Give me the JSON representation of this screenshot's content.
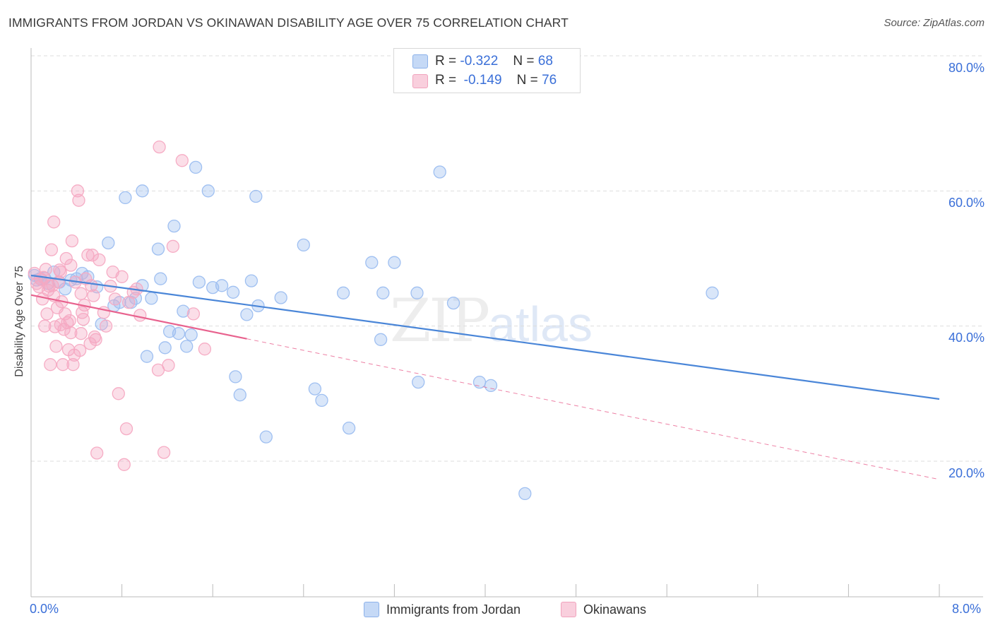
{
  "title": "IMMIGRANTS FROM JORDAN VS OKINAWAN DISABILITY AGE OVER 75 CORRELATION CHART",
  "source": "Source: ZipAtlas.com",
  "watermark": {
    "zip": "ZIP",
    "atlas": "atlas"
  },
  "stats": [
    {
      "r_label": "R =",
      "r_value": "-0.322",
      "n_label": "N =",
      "n_value": "68",
      "color": "#9bbdf0"
    },
    {
      "r_label": "R =",
      "r_value": "-0.149",
      "n_label": "N =",
      "n_value": "76",
      "color": "#f5a9c2"
    }
  ],
  "legend": [
    {
      "label": "Immigrants from Jordan",
      "color": "#9bbdf0"
    },
    {
      "label": "Okinawans",
      "color": "#f5a9c2"
    }
  ],
  "axes": {
    "ylabel": "Disability Age Over 75",
    "x_min_label": "0.0%",
    "x_max_label": "8.0%",
    "y_ticks": [
      "80.0%",
      "60.0%",
      "40.0%",
      "20.0%"
    ]
  },
  "chart_data": {
    "type": "scatter",
    "title": "IMMIGRANTS FROM JORDAN VS OKINAWAN DISABILITY AGE OVER 75 CORRELATION CHART",
    "xlabel": "",
    "ylabel": "Disability Age Over 75",
    "xlim": [
      0,
      8
    ],
    "ylim": [
      0,
      85
    ],
    "y_ticks": [
      20,
      40,
      60,
      80
    ],
    "grid": true,
    "legend_position": "bottom",
    "series": [
      {
        "name": "Immigrants from Jordan",
        "color": "#4a86d8",
        "fill": "#9bbdf0",
        "trend": {
          "x": [
            0.0,
            8.0
          ],
          "y": [
            47.5,
            29.2
          ],
          "dashed_from": null
        },
        "points": [
          [
            0.03,
            47.5
          ],
          [
            0.05,
            46.8
          ],
          [
            0.08,
            47.0
          ],
          [
            0.12,
            47.1
          ],
          [
            0.15,
            46.3
          ],
          [
            0.2,
            48.0
          ],
          [
            0.25,
            46.5
          ],
          [
            0.3,
            45.5
          ],
          [
            0.35,
            46.8
          ],
          [
            0.4,
            47.0
          ],
          [
            0.45,
            47.8
          ],
          [
            0.5,
            47.3
          ],
          [
            0.58,
            45.8
          ],
          [
            0.62,
            40.3
          ],
          [
            0.68,
            52.3
          ],
          [
            0.73,
            43.0
          ],
          [
            0.78,
            43.5
          ],
          [
            0.83,
            59.0
          ],
          [
            0.88,
            43.5
          ],
          [
            0.92,
            44.1
          ],
          [
            0.98,
            46.0
          ],
          [
            0.98,
            60.0
          ],
          [
            1.02,
            35.5
          ],
          [
            1.06,
            44.1
          ],
          [
            1.12,
            51.4
          ],
          [
            1.14,
            47.0
          ],
          [
            1.18,
            36.8
          ],
          [
            1.22,
            39.2
          ],
          [
            1.26,
            54.8
          ],
          [
            1.3,
            38.9
          ],
          [
            1.34,
            42.2
          ],
          [
            1.37,
            37.0
          ],
          [
            1.41,
            38.7
          ],
          [
            1.45,
            63.5
          ],
          [
            1.48,
            46.5
          ],
          [
            1.56,
            60.0
          ],
          [
            1.6,
            45.7
          ],
          [
            1.68,
            46.0
          ],
          [
            1.78,
            45.0
          ],
          [
            1.8,
            32.5
          ],
          [
            1.84,
            29.8
          ],
          [
            1.9,
            41.7
          ],
          [
            1.94,
            46.7
          ],
          [
            1.98,
            59.2
          ],
          [
            2.0,
            43.0
          ],
          [
            2.07,
            23.6
          ],
          [
            2.2,
            44.2
          ],
          [
            2.4,
            52.0
          ],
          [
            2.5,
            30.7
          ],
          [
            2.56,
            29.0
          ],
          [
            2.75,
            44.9
          ],
          [
            2.8,
            24.9
          ],
          [
            3.0,
            49.4
          ],
          [
            3.08,
            38.0
          ],
          [
            3.1,
            44.9
          ],
          [
            3.2,
            49.4
          ],
          [
            3.4,
            44.9
          ],
          [
            3.41,
            31.7
          ],
          [
            3.6,
            62.8
          ],
          [
            3.72,
            43.4
          ],
          [
            3.95,
            31.7
          ],
          [
            4.05,
            31.2
          ],
          [
            4.35,
            15.2
          ],
          [
            6.0,
            44.9
          ]
        ]
      },
      {
        "name": "Okinawans",
        "color": "#e8628e",
        "fill": "#f5a9c2",
        "trend": {
          "x": [
            0.0,
            8.0
          ],
          "y": [
            44.6,
            17.3
          ],
          "dashed_from": 1.9
        },
        "points": [
          [
            0.03,
            47.8
          ],
          [
            0.05,
            46.3
          ],
          [
            0.07,
            45.8
          ],
          [
            0.09,
            46.9
          ],
          [
            0.1,
            44.0
          ],
          [
            0.12,
            40.0
          ],
          [
            0.13,
            48.4
          ],
          [
            0.14,
            41.8
          ],
          [
            0.15,
            45.3
          ],
          [
            0.17,
            34.3
          ],
          [
            0.18,
            51.3
          ],
          [
            0.19,
            46.0
          ],
          [
            0.2,
            55.4
          ],
          [
            0.21,
            39.9
          ],
          [
            0.22,
            37.0
          ],
          [
            0.23,
            42.7
          ],
          [
            0.24,
            46.5
          ],
          [
            0.25,
            48.3
          ],
          [
            0.26,
            48.0
          ],
          [
            0.27,
            43.6
          ],
          [
            0.28,
            34.3
          ],
          [
            0.29,
            39.5
          ],
          [
            0.3,
            41.8
          ],
          [
            0.31,
            50.0
          ],
          [
            0.32,
            40.5
          ],
          [
            0.33,
            36.5
          ],
          [
            0.34,
            40.8
          ],
          [
            0.35,
            49.0
          ],
          [
            0.36,
            52.6
          ],
          [
            0.37,
            34.3
          ],
          [
            0.38,
            35.7
          ],
          [
            0.39,
            46.5
          ],
          [
            0.41,
            60.0
          ],
          [
            0.42,
            58.6
          ],
          [
            0.43,
            36.4
          ],
          [
            0.44,
            44.8
          ],
          [
            0.45,
            42.0
          ],
          [
            0.46,
            41.0
          ],
          [
            0.48,
            47.0
          ],
          [
            0.5,
            50.5
          ],
          [
            0.52,
            37.4
          ],
          [
            0.54,
            50.5
          ],
          [
            0.55,
            44.5
          ],
          [
            0.56,
            38.4
          ],
          [
            0.57,
            38.0
          ],
          [
            0.58,
            21.2
          ],
          [
            0.64,
            42.0
          ],
          [
            0.72,
            48.0
          ],
          [
            0.77,
            30.0
          ],
          [
            0.8,
            47.3
          ],
          [
            0.82,
            19.5
          ],
          [
            0.84,
            24.8
          ],
          [
            0.9,
            45.0
          ],
          [
            0.93,
            45.5
          ],
          [
            1.12,
            33.5
          ],
          [
            1.13,
            66.5
          ],
          [
            1.17,
            21.3
          ],
          [
            1.21,
            34.2
          ],
          [
            1.25,
            51.8
          ],
          [
            1.33,
            64.5
          ],
          [
            1.43,
            41.8
          ],
          [
            1.53,
            36.6
          ],
          [
            0.11,
            47.2
          ],
          [
            0.16,
            45.9
          ],
          [
            0.2,
            44.5
          ],
          [
            0.26,
            40.2
          ],
          [
            0.35,
            39.0
          ],
          [
            0.44,
            38.9
          ],
          [
            0.47,
            43.1
          ],
          [
            0.53,
            46.0
          ],
          [
            0.6,
            49.8
          ],
          [
            0.66,
            40.0
          ],
          [
            0.7,
            45.9
          ],
          [
            0.74,
            44.0
          ],
          [
            0.86,
            43.5
          ],
          [
            0.96,
            41.6
          ]
        ]
      }
    ]
  }
}
